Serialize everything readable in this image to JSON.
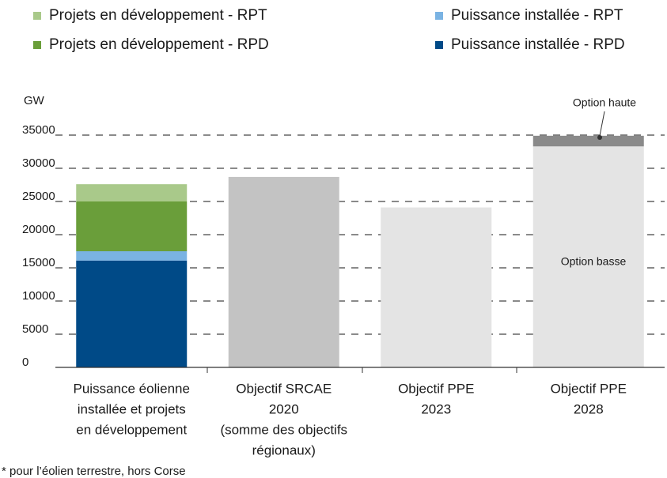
{
  "chart_data": {
    "type": "bar",
    "stacked": true,
    "ylabel": "GW",
    "footnote": "* pour l’éolien terrestre, hors Corse",
    "categories": [
      [
        "Puissance éolienne",
        "installée et projets",
        "en développement"
      ],
      [
        "Objectif SRCAE",
        "2020",
        "(somme des objectifs",
        "régionaux)"
      ],
      [
        "Objectif PPE",
        "2023"
      ],
      [
        "Objectif PPE",
        "2028"
      ]
    ],
    "series": [
      {
        "name": "Projets en développement - RPT",
        "color": "#a9c98a",
        "values": [
          2600,
          null,
          null,
          null
        ]
      },
      {
        "name": "Projets en développement - RPD",
        "color": "#6a9e3a",
        "values": [
          7500,
          null,
          null,
          null
        ]
      },
      {
        "name": "Puissance installée - RPT",
        "color": "#7ab3e3",
        "values": [
          1400,
          null,
          null,
          null
        ]
      },
      {
        "name": "Puissance installée - RPD",
        "color": "#004a87",
        "values": [
          16100,
          null,
          null,
          null
        ]
      },
      {
        "color": "#8a8a8a",
        "values": [
          null,
          null,
          null,
          1600
        ]
      },
      {
        "color": "#e4e4e4",
        "values": [
          null,
          null,
          24100,
          33300
        ]
      },
      {
        "color": "#c3c3c3",
        "values": [
          null,
          28700,
          null,
          null
        ]
      }
    ],
    "annotations": [
      "Option haute",
      "Option basse"
    ],
    "ylim": [
      0,
      35000
    ],
    "yticks": [
      0,
      5000,
      10000,
      15000,
      20000,
      25000,
      30000,
      35000
    ],
    "grid": true
  }
}
